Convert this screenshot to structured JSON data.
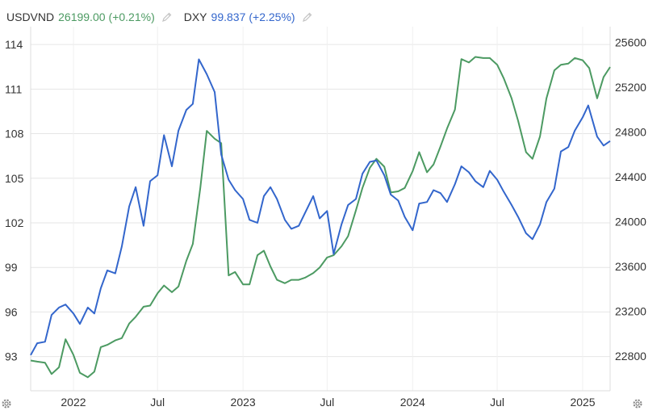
{
  "legend": [
    {
      "symbol": "USDVND",
      "value": "26199.00",
      "change": "(+0.21%)",
      "color": "#4c9a62",
      "icon": "pencil-icon"
    },
    {
      "symbol": "DXY",
      "value": "99.837",
      "change": "(+2.25%)",
      "color": "#3366cc",
      "icon": "pencil-icon"
    }
  ],
  "settings_icons": [
    "gear-icon",
    "gear-icon"
  ],
  "chart_data": {
    "type": "line",
    "x_ticks": [
      "2022",
      "Jul",
      "2023",
      "Jul",
      "2024",
      "Jul",
      "2025"
    ],
    "x_range": [
      "2021-10",
      "2025-03"
    ],
    "y_left_ticks": [
      93,
      96,
      99,
      102,
      105,
      108,
      111,
      114
    ],
    "y_left_range": [
      90.7,
      115.2
    ],
    "y_right_ticks": [
      22800,
      23200,
      23600,
      24000,
      24400,
      24800,
      25200,
      25600
    ],
    "y_right_range": [
      22490,
      25740
    ],
    "grid": true,
    "series": [
      {
        "name": "DXY",
        "axis": "left",
        "color": "#3366cc",
        "points": [
          [
            "2021-10-01",
            93.1
          ],
          [
            "2021-10-15",
            93.9
          ],
          [
            "2021-11-01",
            94.0
          ],
          [
            "2021-11-15",
            95.8
          ],
          [
            "2021-12-01",
            96.3
          ],
          [
            "2021-12-15",
            96.5
          ],
          [
            "2022-01-01",
            95.9
          ],
          [
            "2022-01-15",
            95.2
          ],
          [
            "2022-02-01",
            96.3
          ],
          [
            "2022-02-15",
            95.9
          ],
          [
            "2022-03-01",
            97.6
          ],
          [
            "2022-03-15",
            98.8
          ],
          [
            "2022-04-01",
            98.6
          ],
          [
            "2022-04-15",
            100.4
          ],
          [
            "2022-05-01",
            103.1
          ],
          [
            "2022-05-15",
            104.4
          ],
          [
            "2022-06-01",
            101.8
          ],
          [
            "2022-06-15",
            104.8
          ],
          [
            "2022-07-01",
            105.2
          ],
          [
            "2022-07-15",
            107.9
          ],
          [
            "2022-08-01",
            105.8
          ],
          [
            "2022-08-15",
            108.2
          ],
          [
            "2022-09-01",
            109.6
          ],
          [
            "2022-09-15",
            110.0
          ],
          [
            "2022-09-28",
            113.0
          ],
          [
            "2022-10-15",
            112.0
          ],
          [
            "2022-11-01",
            110.8
          ],
          [
            "2022-11-15",
            106.6
          ],
          [
            "2022-12-01",
            104.9
          ],
          [
            "2022-12-15",
            104.2
          ],
          [
            "2023-01-01",
            103.6
          ],
          [
            "2023-01-15",
            102.2
          ],
          [
            "2023-02-01",
            102.0
          ],
          [
            "2023-02-15",
            103.8
          ],
          [
            "2023-03-01",
            104.4
          ],
          [
            "2023-03-15",
            103.6
          ],
          [
            "2023-04-01",
            102.2
          ],
          [
            "2023-04-15",
            101.6
          ],
          [
            "2023-05-01",
            101.8
          ],
          [
            "2023-05-15",
            102.7
          ],
          [
            "2023-06-01",
            103.8
          ],
          [
            "2023-06-15",
            102.3
          ],
          [
            "2023-07-01",
            102.8
          ],
          [
            "2023-07-15",
            99.9
          ],
          [
            "2023-08-01",
            101.9
          ],
          [
            "2023-08-15",
            103.2
          ],
          [
            "2023-09-01",
            103.6
          ],
          [
            "2023-09-15",
            105.3
          ],
          [
            "2023-10-01",
            106.1
          ],
          [
            "2023-10-15",
            106.2
          ],
          [
            "2023-11-01",
            105.2
          ],
          [
            "2023-11-15",
            103.9
          ],
          [
            "2023-12-01",
            103.5
          ],
          [
            "2023-12-15",
            102.4
          ],
          [
            "2024-01-01",
            101.5
          ],
          [
            "2024-01-15",
            103.3
          ],
          [
            "2024-02-01",
            103.4
          ],
          [
            "2024-02-15",
            104.2
          ],
          [
            "2024-03-01",
            104.0
          ],
          [
            "2024-03-15",
            103.4
          ],
          [
            "2024-04-01",
            104.6
          ],
          [
            "2024-04-15",
            105.8
          ],
          [
            "2024-05-01",
            105.4
          ],
          [
            "2024-05-15",
            104.8
          ],
          [
            "2024-06-01",
            104.4
          ],
          [
            "2024-06-15",
            105.5
          ],
          [
            "2024-07-01",
            104.9
          ],
          [
            "2024-07-15",
            104.1
          ],
          [
            "2024-08-01",
            103.2
          ],
          [
            "2024-08-15",
            102.4
          ],
          [
            "2024-09-01",
            101.3
          ],
          [
            "2024-09-15",
            100.9
          ],
          [
            "2024-10-01",
            101.9
          ],
          [
            "2024-10-15",
            103.4
          ],
          [
            "2024-11-01",
            104.3
          ],
          [
            "2024-11-15",
            106.8
          ],
          [
            "2024-12-01",
            107.1
          ],
          [
            "2024-12-15",
            108.2
          ],
          [
            "2025-01-01",
            109.1
          ],
          [
            "2025-01-13",
            109.9
          ],
          [
            "2025-02-01",
            107.8
          ],
          [
            "2025-02-15",
            107.2
          ],
          [
            "2025-03-01",
            107.5
          ]
        ]
      },
      {
        "name": "USDVND",
        "axis": "right",
        "color": "#4c9a62",
        "points": [
          [
            "2021-10-01",
            22760
          ],
          [
            "2021-10-15",
            22750
          ],
          [
            "2021-11-01",
            22740
          ],
          [
            "2021-11-15",
            22640
          ],
          [
            "2021-12-01",
            22700
          ],
          [
            "2021-12-15",
            22950
          ],
          [
            "2022-01-01",
            22810
          ],
          [
            "2022-01-15",
            22650
          ],
          [
            "2022-02-01",
            22610
          ],
          [
            "2022-02-15",
            22660
          ],
          [
            "2022-03-01",
            22880
          ],
          [
            "2022-03-15",
            22900
          ],
          [
            "2022-04-01",
            22940
          ],
          [
            "2022-04-15",
            22960
          ],
          [
            "2022-05-01",
            23090
          ],
          [
            "2022-05-15",
            23150
          ],
          [
            "2022-06-01",
            23240
          ],
          [
            "2022-06-15",
            23250
          ],
          [
            "2022-07-01",
            23360
          ],
          [
            "2022-07-15",
            23430
          ],
          [
            "2022-08-01",
            23370
          ],
          [
            "2022-08-15",
            23420
          ],
          [
            "2022-09-01",
            23650
          ],
          [
            "2022-09-15",
            23800
          ],
          [
            "2022-10-01",
            24300
          ],
          [
            "2022-10-15",
            24810
          ],
          [
            "2022-11-01",
            24740
          ],
          [
            "2022-11-15",
            24700
          ],
          [
            "2022-12-01",
            23520
          ],
          [
            "2022-12-15",
            23550
          ],
          [
            "2023-01-01",
            23440
          ],
          [
            "2023-01-15",
            23440
          ],
          [
            "2023-02-01",
            23700
          ],
          [
            "2023-02-15",
            23740
          ],
          [
            "2023-03-01",
            23600
          ],
          [
            "2023-03-15",
            23480
          ],
          [
            "2023-04-01",
            23450
          ],
          [
            "2023-04-15",
            23480
          ],
          [
            "2023-05-01",
            23480
          ],
          [
            "2023-05-15",
            23500
          ],
          [
            "2023-06-01",
            23540
          ],
          [
            "2023-06-15",
            23590
          ],
          [
            "2023-07-01",
            23680
          ],
          [
            "2023-07-15",
            23700
          ],
          [
            "2023-08-01",
            23780
          ],
          [
            "2023-08-15",
            23870
          ],
          [
            "2023-09-01",
            24100
          ],
          [
            "2023-09-15",
            24300
          ],
          [
            "2023-10-01",
            24480
          ],
          [
            "2023-10-15",
            24560
          ],
          [
            "2023-11-01",
            24490
          ],
          [
            "2023-11-15",
            24260
          ],
          [
            "2023-12-01",
            24270
          ],
          [
            "2023-12-15",
            24300
          ],
          [
            "2024-01-01",
            24450
          ],
          [
            "2024-01-15",
            24620
          ],
          [
            "2024-02-01",
            24440
          ],
          [
            "2024-02-15",
            24510
          ],
          [
            "2024-03-01",
            24670
          ],
          [
            "2024-03-15",
            24830
          ],
          [
            "2024-04-01",
            25000
          ],
          [
            "2024-04-15",
            25450
          ],
          [
            "2024-05-01",
            25420
          ],
          [
            "2024-05-15",
            25470
          ],
          [
            "2024-06-01",
            25460
          ],
          [
            "2024-06-15",
            25460
          ],
          [
            "2024-07-01",
            25400
          ],
          [
            "2024-07-15",
            25280
          ],
          [
            "2024-08-01",
            25100
          ],
          [
            "2024-08-15",
            24900
          ],
          [
            "2024-09-01",
            24620
          ],
          [
            "2024-09-15",
            24560
          ],
          [
            "2024-10-01",
            24760
          ],
          [
            "2024-10-15",
            25100
          ],
          [
            "2024-11-01",
            25350
          ],
          [
            "2024-11-15",
            25400
          ],
          [
            "2024-12-01",
            25410
          ],
          [
            "2024-12-15",
            25460
          ],
          [
            "2025-01-01",
            25440
          ],
          [
            "2025-01-15",
            25370
          ],
          [
            "2025-02-01",
            25100
          ],
          [
            "2025-02-15",
            25290
          ],
          [
            "2025-03-01",
            25380
          ]
        ]
      }
    ]
  }
}
